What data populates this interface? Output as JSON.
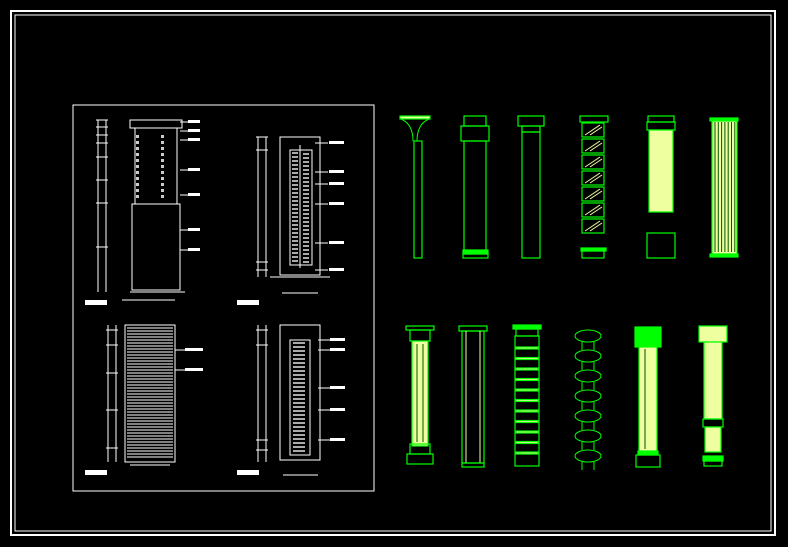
{
  "colors": {
    "background": "#000000",
    "frame": "#ffffff",
    "line": "#00ff00",
    "fill": "#eeffa0"
  },
  "sheet": {
    "detail_panel_count": 4,
    "column_elevation_count": 12
  }
}
